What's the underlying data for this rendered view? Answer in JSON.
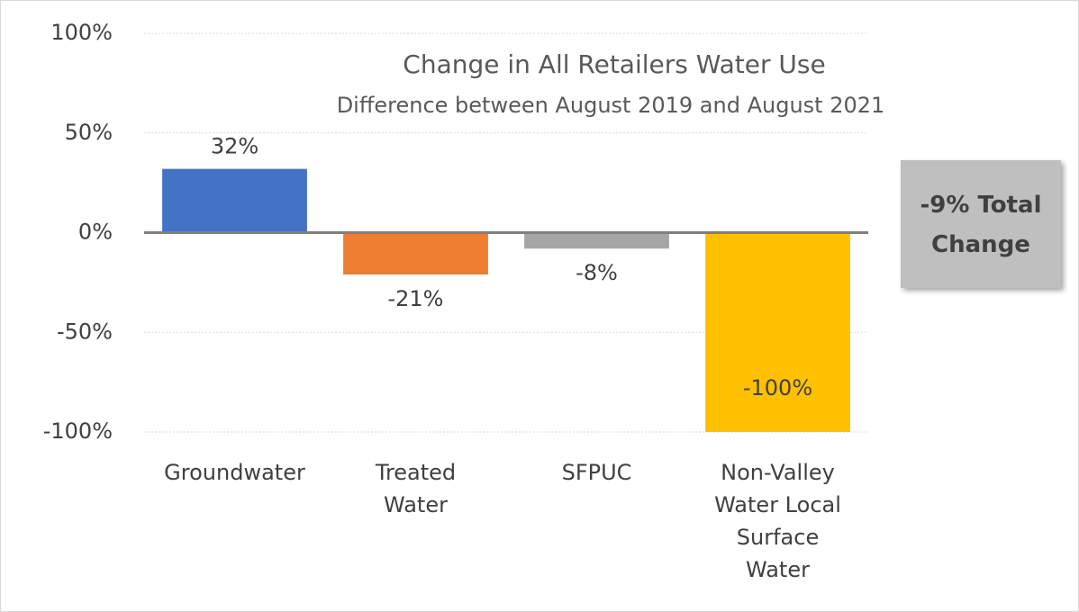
{
  "chart_data": {
    "type": "bar",
    "title": "Change in All Retailers Water Use",
    "subtitle": "Difference between August 2019 and August 2021",
    "categories": [
      "Groundwater",
      "Treated Water",
      "SFPUC",
      "Non-Valley Water Local Surface Water"
    ],
    "values": [
      32,
      -21,
      -8,
      -100
    ],
    "value_labels": [
      "32%",
      "-21%",
      "-8%",
      "-100%"
    ],
    "colors": [
      "#4472c4",
      "#ed7d31",
      "#a5a5a5",
      "#ffc000"
    ],
    "ylim": [
      -100,
      100
    ],
    "yticks": [
      {
        "value": -100,
        "label": "-100%"
      },
      {
        "value": -50,
        "label": "-50%"
      },
      {
        "value": 0,
        "label": "0%"
      },
      {
        "value": 50,
        "label": "50%"
      },
      {
        "value": 100,
        "label": "100%"
      }
    ],
    "grid": true,
    "annotation": "-9% Total Change"
  }
}
